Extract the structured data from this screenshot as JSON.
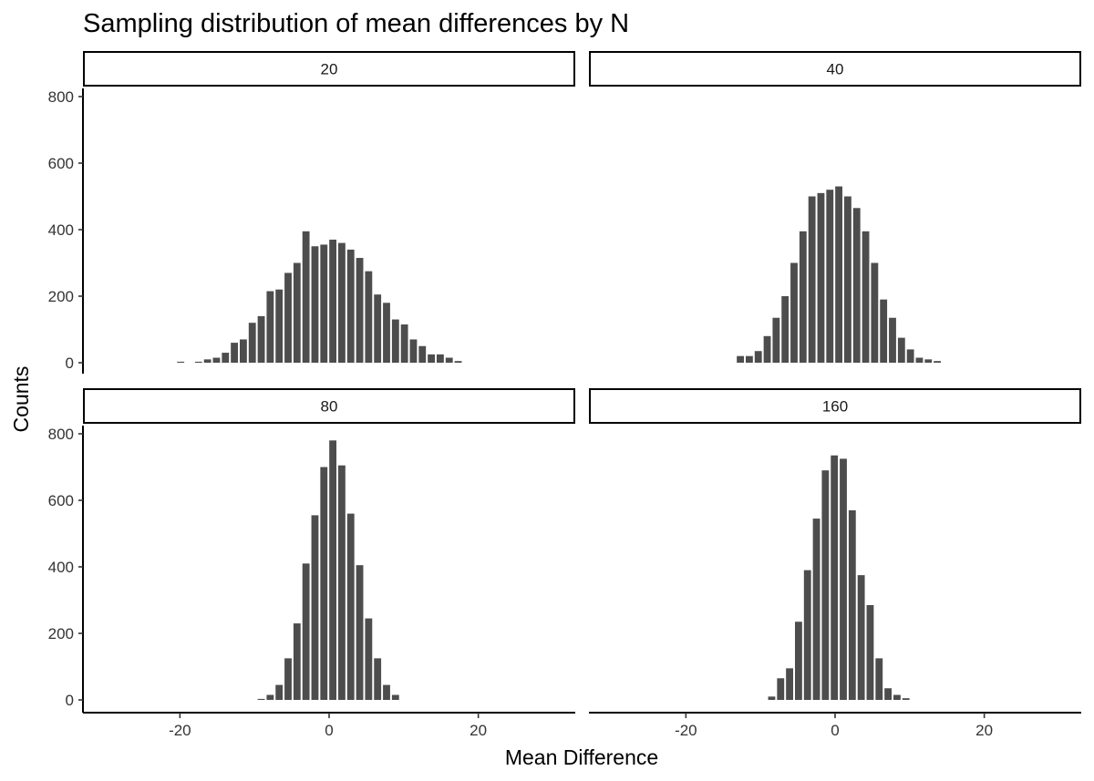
{
  "chart_data": {
    "type": "bar",
    "title": "Sampling distribution of mean differences by N",
    "xlabel": "Mean Difference",
    "ylabel": "Counts",
    "xlim": [
      -33,
      33
    ],
    "ylim": [
      0,
      810
    ],
    "x_ticks": [
      -20,
      0,
      20
    ],
    "y_ticks": [
      0,
      200,
      400,
      600,
      800
    ],
    "bin_width": 1.2,
    "bar_color": "#4d4d4d",
    "grid": false,
    "facets": [
      {
        "label": "20",
        "x": [
          -19.9,
          -17.5,
          -16.3,
          -15.1,
          -13.9,
          -12.7,
          -11.5,
          -10.3,
          -9.1,
          -7.9,
          -6.7,
          -5.5,
          -4.3,
          -3.1,
          -1.9,
          -0.7,
          0.5,
          1.7,
          2.9,
          4.1,
          5.3,
          6.5,
          7.7,
          8.9,
          10.1,
          11.3,
          12.5,
          13.7,
          14.9,
          16.1,
          17.3
        ],
        "values": [
          3,
          3,
          10,
          15,
          30,
          60,
          70,
          120,
          140,
          215,
          220,
          270,
          300,
          395,
          350,
          355,
          370,
          360,
          340,
          315,
          275,
          205,
          180,
          130,
          115,
          70,
          50,
          25,
          25,
          15,
          5
        ]
      },
      {
        "label": "40",
        "x": [
          -12.7,
          -11.5,
          -10.3,
          -9.1,
          -7.9,
          -6.7,
          -5.5,
          -4.3,
          -3.1,
          -1.9,
          -0.7,
          0.5,
          1.7,
          2.9,
          4.1,
          5.3,
          6.5,
          7.7,
          8.9,
          10.1,
          11.3,
          12.5,
          13.7
        ],
        "values": [
          20,
          20,
          35,
          80,
          135,
          200,
          300,
          395,
          500,
          510,
          520,
          530,
          500,
          465,
          395,
          300,
          190,
          135,
          75,
          40,
          15,
          10,
          5
        ]
      },
      {
        "label": "80",
        "x": [
          -9.1,
          -7.9,
          -6.7,
          -5.5,
          -4.3,
          -3.1,
          -1.9,
          -0.7,
          0.5,
          1.7,
          2.9,
          4.1,
          5.3,
          6.5,
          7.7,
          8.9
        ],
        "values": [
          3,
          15,
          45,
          125,
          230,
          410,
          555,
          700,
          780,
          705,
          560,
          405,
          245,
          125,
          45,
          15
        ]
      },
      {
        "label": "160",
        "x": [
          -8.5,
          -7.3,
          -6.1,
          -4.9,
          -3.7,
          -2.5,
          -1.3,
          -0.1,
          1.1,
          2.3,
          3.5,
          4.7,
          5.9,
          7.1,
          8.3,
          9.5
        ],
        "values": [
          10,
          65,
          95,
          235,
          390,
          545,
          690,
          735,
          725,
          570,
          375,
          285,
          125,
          35,
          15,
          5
        ]
      }
    ]
  }
}
